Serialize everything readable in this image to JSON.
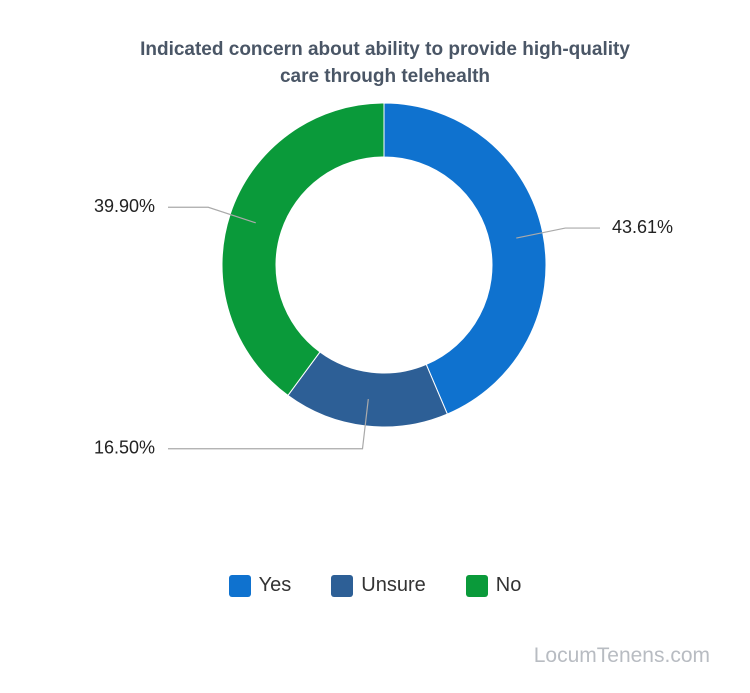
{
  "chart_data": {
    "type": "donut",
    "title": "Indicated concern about ability to provide high-quality care through telehealth",
    "categories": [
      "Yes",
      "Unsure",
      "No"
    ],
    "values": [
      43.61,
      16.5,
      39.9
    ],
    "value_labels": [
      "43.61%",
      "16.50%",
      "39.90%"
    ],
    "colors": [
      "#0f72cf",
      "#2d5f96",
      "#0a9a3a"
    ],
    "legend": "bottom"
  },
  "watermark": "LocumTenens.com"
}
